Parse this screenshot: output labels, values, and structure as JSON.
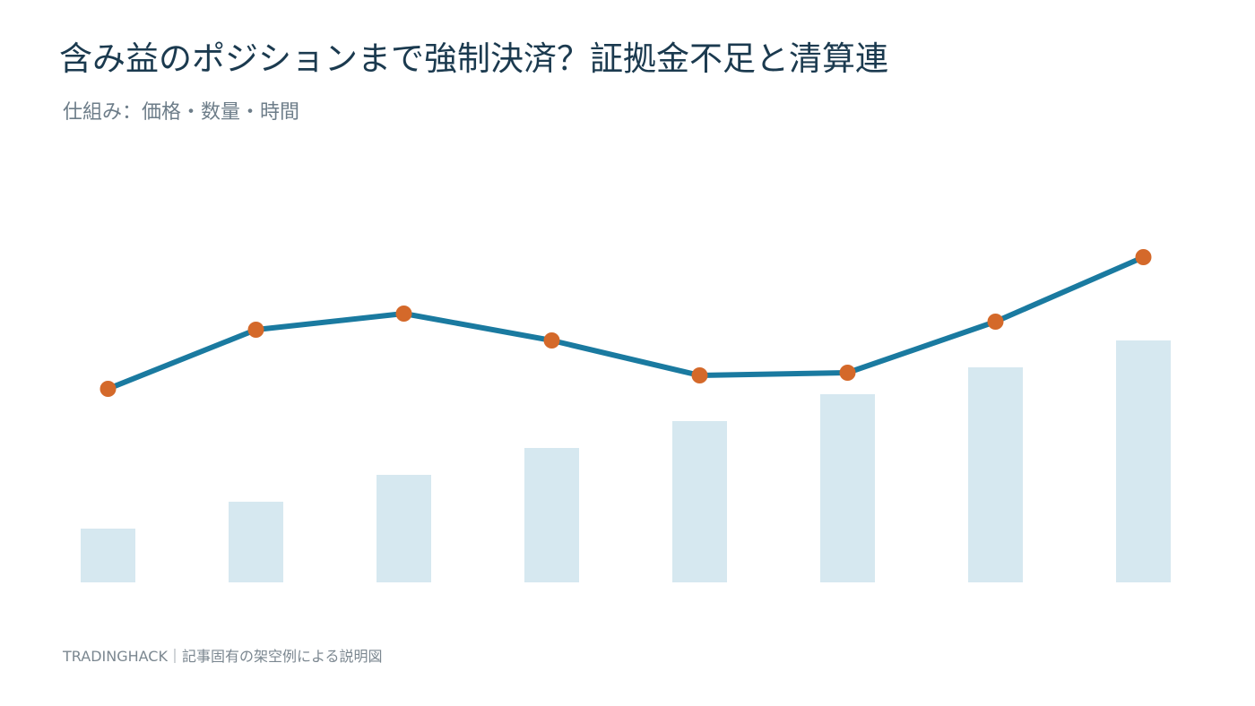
{
  "header": {
    "title": "含み益のポジションまで強制決済？証拠金不足と清算連",
    "subtitle": "仕組み：価格・数量・時間"
  },
  "footer": {
    "source": "TRADINGHACK｜記事固有の架空例による説明図"
  },
  "colors": {
    "bar": "#d6e8f0",
    "line": "#1a7aa0",
    "marker": "#d4692a"
  },
  "chart_data": {
    "type": "bar",
    "title": "含み益のポジションまで強制決済？証拠金不足と清算連",
    "subtitle": "仕組み：価格・数量・時間",
    "xlabel": "",
    "ylabel": "",
    "axes_visible": false,
    "grid": false,
    "legend": "none",
    "ylim": [
      0,
      10
    ],
    "x": [
      1,
      2,
      3,
      4,
      5,
      6,
      7,
      8
    ],
    "series": [
      {
        "type": "bar",
        "values": [
          1.0,
          1.5,
          2.0,
          2.5,
          3.0,
          3.5,
          4.0,
          4.5
        ]
      },
      {
        "type": "line",
        "markers": true,
        "values": [
          3.6,
          4.7,
          5.0,
          4.5,
          3.85,
          3.9,
          4.85,
          6.05
        ]
      }
    ]
  }
}
